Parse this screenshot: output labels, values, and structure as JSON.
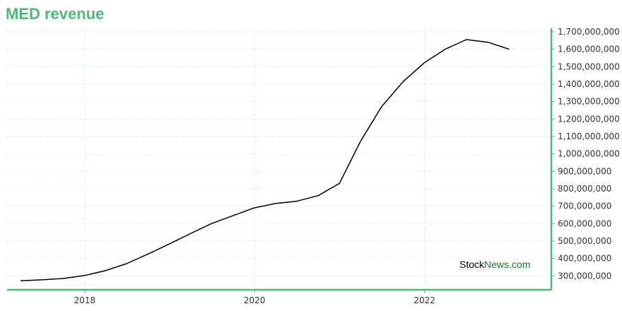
{
  "chart_data": {
    "type": "line",
    "title": "MED revenue",
    "xlabel": "",
    "ylabel": "",
    "x_tick_labels": [
      "2018",
      "2020",
      "2022"
    ],
    "y_tick_labels": [
      "300,000,000",
      "400,000,000",
      "500,000,000",
      "600,000,000",
      "700,000,000",
      "800,000,000",
      "900,000,000",
      "1,000,000,000",
      "1,100,000,000",
      "1,200,000,000",
      "1,300,000,000",
      "1,400,000,000",
      "1,500,000,000",
      "1,600,000,000",
      "1,700,000,000"
    ],
    "ylim": [
      220000000,
      1720000000
    ],
    "xlim": [
      "2017-02-01",
      "2023-06-30"
    ],
    "grid": true,
    "series": [
      {
        "x": [
          "2017-03-31",
          "2017-06-30",
          "2017-09-30",
          "2017-12-31",
          "2018-03-31",
          "2018-06-30",
          "2018-09-30",
          "2018-12-31",
          "2019-03-31",
          "2019-06-30",
          "2019-09-30",
          "2019-12-31",
          "2020-03-31",
          "2020-06-30",
          "2020-09-30",
          "2020-12-31",
          "2021-03-31",
          "2021-06-30",
          "2021-09-30",
          "2021-12-31",
          "2022-03-31",
          "2022-06-30",
          "2022-09-30",
          "2022-12-31"
        ],
        "values": [
          272000000,
          277000000,
          285000000,
          302000000,
          330000000,
          370000000,
          425000000,
          483000000,
          542000000,
          600000000,
          645000000,
          690000000,
          715000000,
          728000000,
          760000000,
          830000000,
          1070000000,
          1270000000,
          1413000000,
          1522000000,
          1600000000,
          1655000000,
          1640000000,
          1600000000
        ]
      }
    ]
  },
  "watermark": {
    "part1": "Stock",
    "part2": "News.com",
    "color1": "#000000",
    "color2": "#1a7a2e"
  },
  "colors": {
    "accent": "#4cb879",
    "line": "#000000",
    "grid": "#b7dcc5"
  }
}
